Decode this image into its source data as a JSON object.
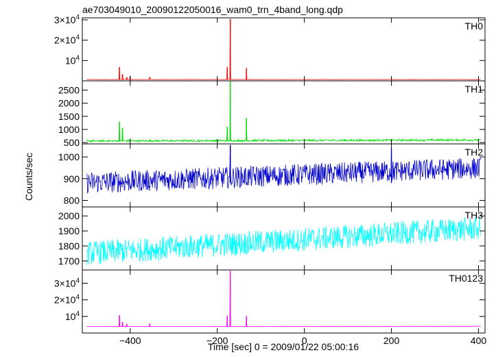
{
  "chart_data": {
    "type": "line",
    "title": "ae703049010_20090122050016_wam0_trn_4band_long.qdp",
    "xlabel": "Time [sec] 0 = 2009/01/22 05:00:16",
    "ylabel": "Counts/sec",
    "xlim": [
      -510,
      415
    ],
    "x_ticks": [
      {
        "value": -400,
        "label": "−400"
      },
      {
        "value": -200,
        "label": "−200"
      },
      {
        "value": 0,
        "label": "0"
      },
      {
        "value": 200,
        "label": "200"
      },
      {
        "value": 400,
        "label": "400"
      }
    ],
    "panels": [
      {
        "name": "TH0",
        "color": "#ff0000",
        "ylim": [
          0,
          31000
        ],
        "baseline": 650,
        "noise": 80,
        "trend": 0,
        "y_ticks": [
          {
            "value": 10000,
            "mant": "",
            "exp": "10",
            "sup": "4"
          },
          {
            "value": 20000,
            "mant": "2×",
            "exp": "10",
            "sup": "4"
          },
          {
            "value": 30000,
            "mant": "3×",
            "exp": "10",
            "sup": "4"
          }
        ],
        "spikes": [
          [
            -425,
            6800
          ],
          [
            -418,
            3300
          ],
          [
            -408,
            1700
          ],
          [
            -400,
            2400
          ],
          [
            -355,
            1900
          ],
          [
            -177,
            6800
          ],
          [
            -170,
            30500
          ],
          [
            -133,
            6300
          ]
        ]
      },
      {
        "name": "TH1",
        "color": "#00e000",
        "ylim": [
          450,
          2850
        ],
        "baseline": 560,
        "noise": 40,
        "trend": 40,
        "y_ticks": [
          {
            "value": 500,
            "label": "500"
          },
          {
            "value": 1000,
            "label": "1000"
          },
          {
            "value": 1500,
            "label": "1500"
          },
          {
            "value": 2000,
            "label": "2000"
          },
          {
            "value": 2500,
            "label": "2500"
          }
        ],
        "spikes": [
          [
            -425,
            1300
          ],
          [
            -418,
            1060
          ],
          [
            -400,
            650
          ],
          [
            -177,
            1100
          ],
          [
            -170,
            2850
          ],
          [
            -133,
            1440
          ]
        ]
      },
      {
        "name": "TH2",
        "color": "#0000cc",
        "ylim": [
          770,
          1060
        ],
        "baseline": 880,
        "noise": 50,
        "trend": 70,
        "y_ticks": [
          {
            "value": 800,
            "label": "800"
          },
          {
            "value": 900,
            "label": "900"
          },
          {
            "value": 1000,
            "label": "1000"
          }
        ],
        "spikes": [
          [
            -170,
            1055
          ],
          [
            200,
            1040
          ]
        ]
      },
      {
        "name": "TH3",
        "color": "#00ffff",
        "ylim": [
          1640,
          2060
        ],
        "baseline": 1750,
        "noise": 80,
        "trend": 170,
        "y_ticks": [
          {
            "value": 1700,
            "label": "1700"
          },
          {
            "value": 1800,
            "label": "1800"
          },
          {
            "value": 1900,
            "label": "1900"
          },
          {
            "value": 2000,
            "label": "2000"
          }
        ],
        "spikes": []
      },
      {
        "name": "TH0123",
        "color": "#ff00ff",
        "ylim": [
          0,
          38000
        ],
        "baseline": 3900,
        "noise": 100,
        "trend": 150,
        "y_ticks": [
          {
            "value": 10000,
            "mant": "",
            "exp": "10",
            "sup": "4"
          },
          {
            "value": 20000,
            "mant": "2×",
            "exp": "10",
            "sup": "4"
          },
          {
            "value": 30000,
            "mant": "3×",
            "exp": "10",
            "sup": "4"
          }
        ],
        "spikes": [
          [
            -425,
            10800
          ],
          [
            -418,
            6600
          ],
          [
            -408,
            5300
          ],
          [
            -355,
            5800
          ],
          [
            -177,
            10500
          ],
          [
            -170,
            37500
          ],
          [
            -133,
            10200
          ]
        ]
      }
    ]
  }
}
